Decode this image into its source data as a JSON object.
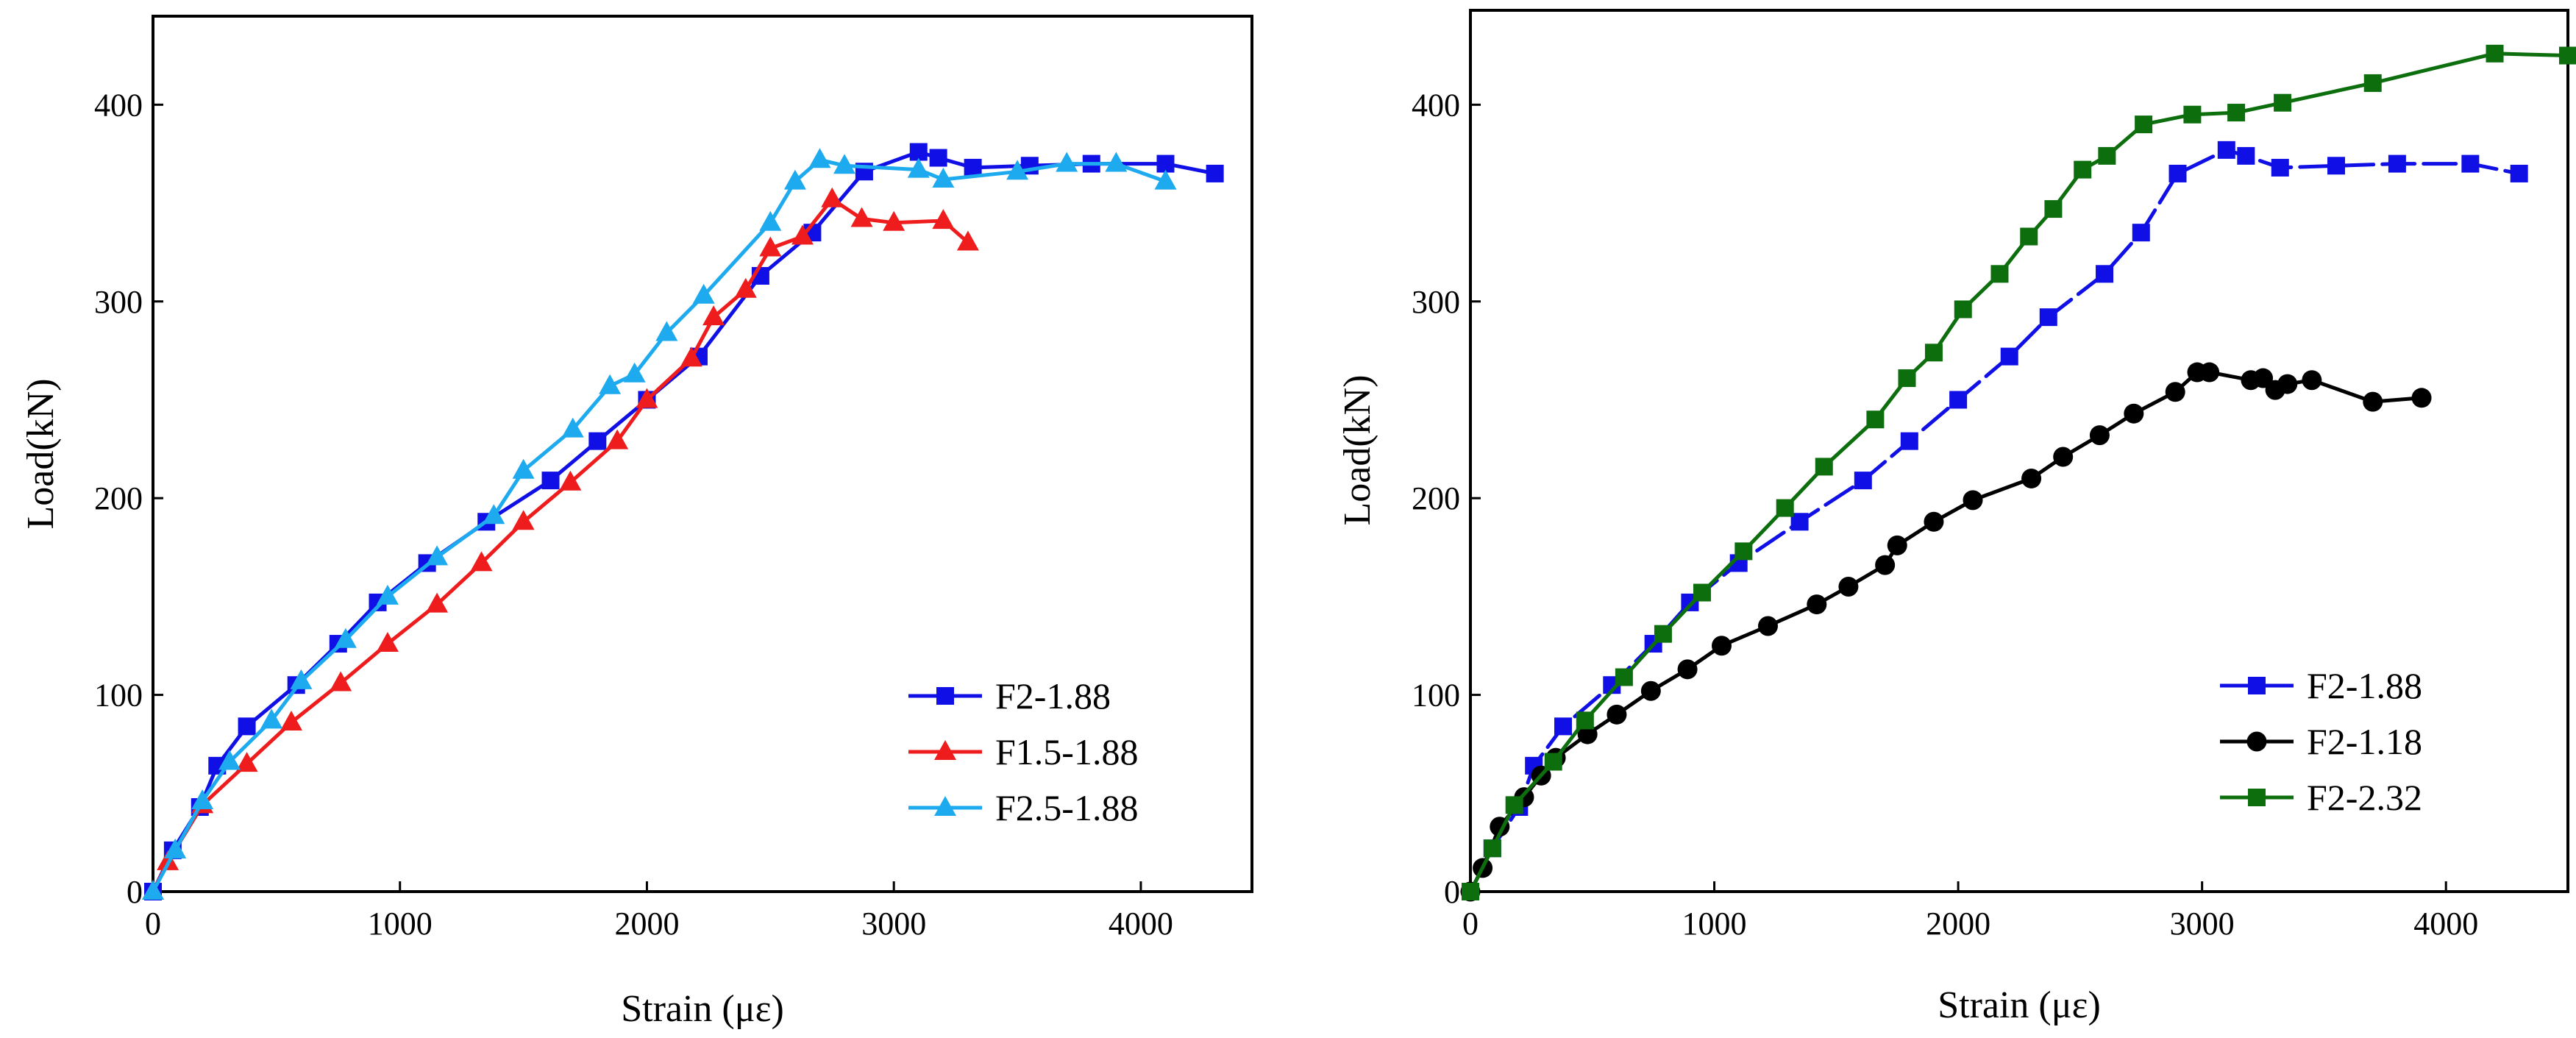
{
  "chart_data": [
    {
      "type": "line",
      "title": "",
      "xlabel": "Strain (με)",
      "ylabel": "Load(kN)",
      "xlim": [
        0,
        4450
      ],
      "ylim": [
        0,
        445
      ],
      "xticks": [
        0,
        1000,
        2000,
        3000,
        4000
      ],
      "yticks": [
        0,
        100,
        200,
        300,
        400
      ],
      "xtick_labels": [
        "0",
        "1000",
        "2000",
        "3000",
        "4000"
      ],
      "ytick_labels": [
        "0",
        "100",
        "200",
        "300",
        "400"
      ],
      "legend_position": "bottom-right",
      "series": [
        {
          "name": "F2-1.88",
          "color": "#1010e6",
          "marker": "square",
          "line": "solid",
          "points": [
            [
              0,
              0
            ],
            [
              80,
              21
            ],
            [
              190,
              43
            ],
            [
              260,
              64
            ],
            [
              380,
              84
            ],
            [
              580,
              105
            ],
            [
              750,
              126
            ],
            [
              910,
              147
            ],
            [
              1110,
              167
            ],
            [
              1350,
              188
            ],
            [
              1610,
              209
            ],
            [
              1800,
              229
            ],
            [
              2000,
              250
            ],
            [
              2210,
              272
            ],
            [
              2460,
              313
            ],
            [
              2670,
              335
            ],
            [
              2880,
              366
            ],
            [
              3100,
              376
            ],
            [
              3180,
              373
            ],
            [
              3320,
              368
            ],
            [
              3550,
              369
            ],
            [
              3800,
              370
            ],
            [
              4100,
              370
            ],
            [
              4300,
              365
            ]
          ]
        },
        {
          "name": "F1.5-1.88",
          "color": "#ee1c1c",
          "marker": "triangle",
          "line": "solid",
          "points": [
            [
              0,
              0
            ],
            [
              60,
              15
            ],
            [
              200,
              44
            ],
            [
              380,
              65
            ],
            [
              560,
              86
            ],
            [
              760,
              106
            ],
            [
              950,
              126
            ],
            [
              1150,
              146
            ],
            [
              1330,
              167
            ],
            [
              1500,
              188
            ],
            [
              1690,
              208
            ],
            [
              1880,
              229
            ],
            [
              2000,
              250
            ],
            [
              2180,
              271
            ],
            [
              2270,
              292
            ],
            [
              2400,
              306
            ],
            [
              2500,
              327
            ],
            [
              2630,
              333
            ],
            [
              2750,
              352
            ],
            [
              2870,
              342
            ],
            [
              3000,
              340
            ],
            [
              3200,
              341
            ],
            [
              3300,
              330
            ]
          ]
        },
        {
          "name": "F2.5-1.88",
          "color": "#1eaaee",
          "marker": "triangle",
          "line": "solid",
          "points": [
            [
              0,
              0
            ],
            [
              90,
              21
            ],
            [
              200,
              46
            ],
            [
              310,
              66
            ],
            [
              480,
              87
            ],
            [
              600,
              107
            ],
            [
              780,
              128
            ],
            [
              950,
              150
            ],
            [
              1150,
              170
            ],
            [
              1380,
              191
            ],
            [
              1500,
              214
            ],
            [
              1700,
              235
            ],
            [
              1850,
              257
            ],
            [
              1950,
              263
            ],
            [
              2080,
              284
            ],
            [
              2230,
              303
            ],
            [
              2500,
              340
            ],
            [
              2600,
              361
            ],
            [
              2700,
              372
            ],
            [
              2800,
              369
            ],
            [
              3100,
              367
            ],
            [
              3200,
              362
            ],
            [
              3500,
              366
            ],
            [
              3700,
              370
            ],
            [
              3900,
              370
            ],
            [
              4100,
              361
            ]
          ]
        }
      ]
    },
    {
      "type": "line",
      "title": "",
      "xlabel": "Strain (με)",
      "ylabel": "Load(kN)",
      "xlim": [
        0,
        4500
      ],
      "ylim": [
        0,
        448
      ],
      "xticks": [
        0,
        1000,
        2000,
        3000,
        4000
      ],
      "yticks": [
        0,
        100,
        200,
        300,
        400
      ],
      "xtick_labels": [
        "0",
        "1000",
        "2000",
        "3000",
        "4000"
      ],
      "ytick_labels": [
        "0",
        "100",
        "200",
        "300",
        "400"
      ],
      "legend_position": "bottom-right",
      "series": [
        {
          "name": "F2-1.88",
          "color": "#1010e6",
          "marker": "square",
          "line": "dashed",
          "points": [
            [
              0,
              0
            ],
            [
              90,
              22
            ],
            [
              200,
              43
            ],
            [
              260,
              64
            ],
            [
              380,
              84
            ],
            [
              580,
              105
            ],
            [
              750,
              126
            ],
            [
              900,
              147
            ],
            [
              1100,
              167
            ],
            [
              1350,
              188
            ],
            [
              1610,
              209
            ],
            [
              1800,
              229
            ],
            [
              2000,
              250
            ],
            [
              2210,
              272
            ],
            [
              2370,
              292
            ],
            [
              2600,
              314
            ],
            [
              2750,
              335
            ],
            [
              2900,
              365
            ],
            [
              3100,
              377
            ],
            [
              3180,
              374
            ],
            [
              3320,
              368
            ],
            [
              3550,
              369
            ],
            [
              3800,
              370
            ],
            [
              4100,
              370
            ],
            [
              4300,
              365
            ]
          ]
        },
        {
          "name": "F2-1.18",
          "color": "#000000",
          "marker": "circle",
          "line": "solid",
          "points": [
            [
              0,
              0
            ],
            [
              50,
              12
            ],
            [
              120,
              33
            ],
            [
              220,
              48
            ],
            [
              290,
              59
            ],
            [
              350,
              68
            ],
            [
              480,
              80
            ],
            [
              600,
              90
            ],
            [
              740,
              102
            ],
            [
              890,
              113
            ],
            [
              1030,
              125
            ],
            [
              1220,
              135
            ],
            [
              1420,
              146
            ],
            [
              1550,
              155
            ],
            [
              1700,
              166
            ],
            [
              1750,
              176
            ],
            [
              1900,
              188
            ],
            [
              2060,
              199
            ],
            [
              2300,
              210
            ],
            [
              2430,
              221
            ],
            [
              2580,
              232
            ],
            [
              2720,
              243
            ],
            [
              2890,
              254
            ],
            [
              2980,
              264
            ],
            [
              3030,
              264
            ],
            [
              3200,
              260
            ],
            [
              3250,
              261
            ],
            [
              3300,
              255
            ],
            [
              3350,
              258
            ],
            [
              3450,
              260
            ],
            [
              3700,
              249
            ],
            [
              3900,
              251
            ]
          ]
        },
        {
          "name": "F2-2.32",
          "color": "#0d6e0d",
          "marker": "square",
          "line": "solid",
          "points": [
            [
              0,
              0
            ],
            [
              90,
              22
            ],
            [
              180,
              44
            ],
            [
              340,
              66
            ],
            [
              470,
              87
            ],
            [
              630,
              109
            ],
            [
              790,
              131
            ],
            [
              950,
              152
            ],
            [
              1120,
              173
            ],
            [
              1290,
              195
            ],
            [
              1450,
              216
            ],
            [
              1660,
              240
            ],
            [
              1790,
              261
            ],
            [
              1900,
              274
            ],
            [
              2020,
              296
            ],
            [
              2170,
              314
            ],
            [
              2290,
              333
            ],
            [
              2390,
              347
            ],
            [
              2510,
              367
            ],
            [
              2610,
              374
            ],
            [
              2760,
              390
            ],
            [
              2960,
              395
            ],
            [
              3140,
              396
            ],
            [
              3330,
              401
            ],
            [
              3700,
              411
            ],
            [
              4200,
              426
            ],
            [
              4500,
              425
            ]
          ]
        }
      ]
    }
  ]
}
